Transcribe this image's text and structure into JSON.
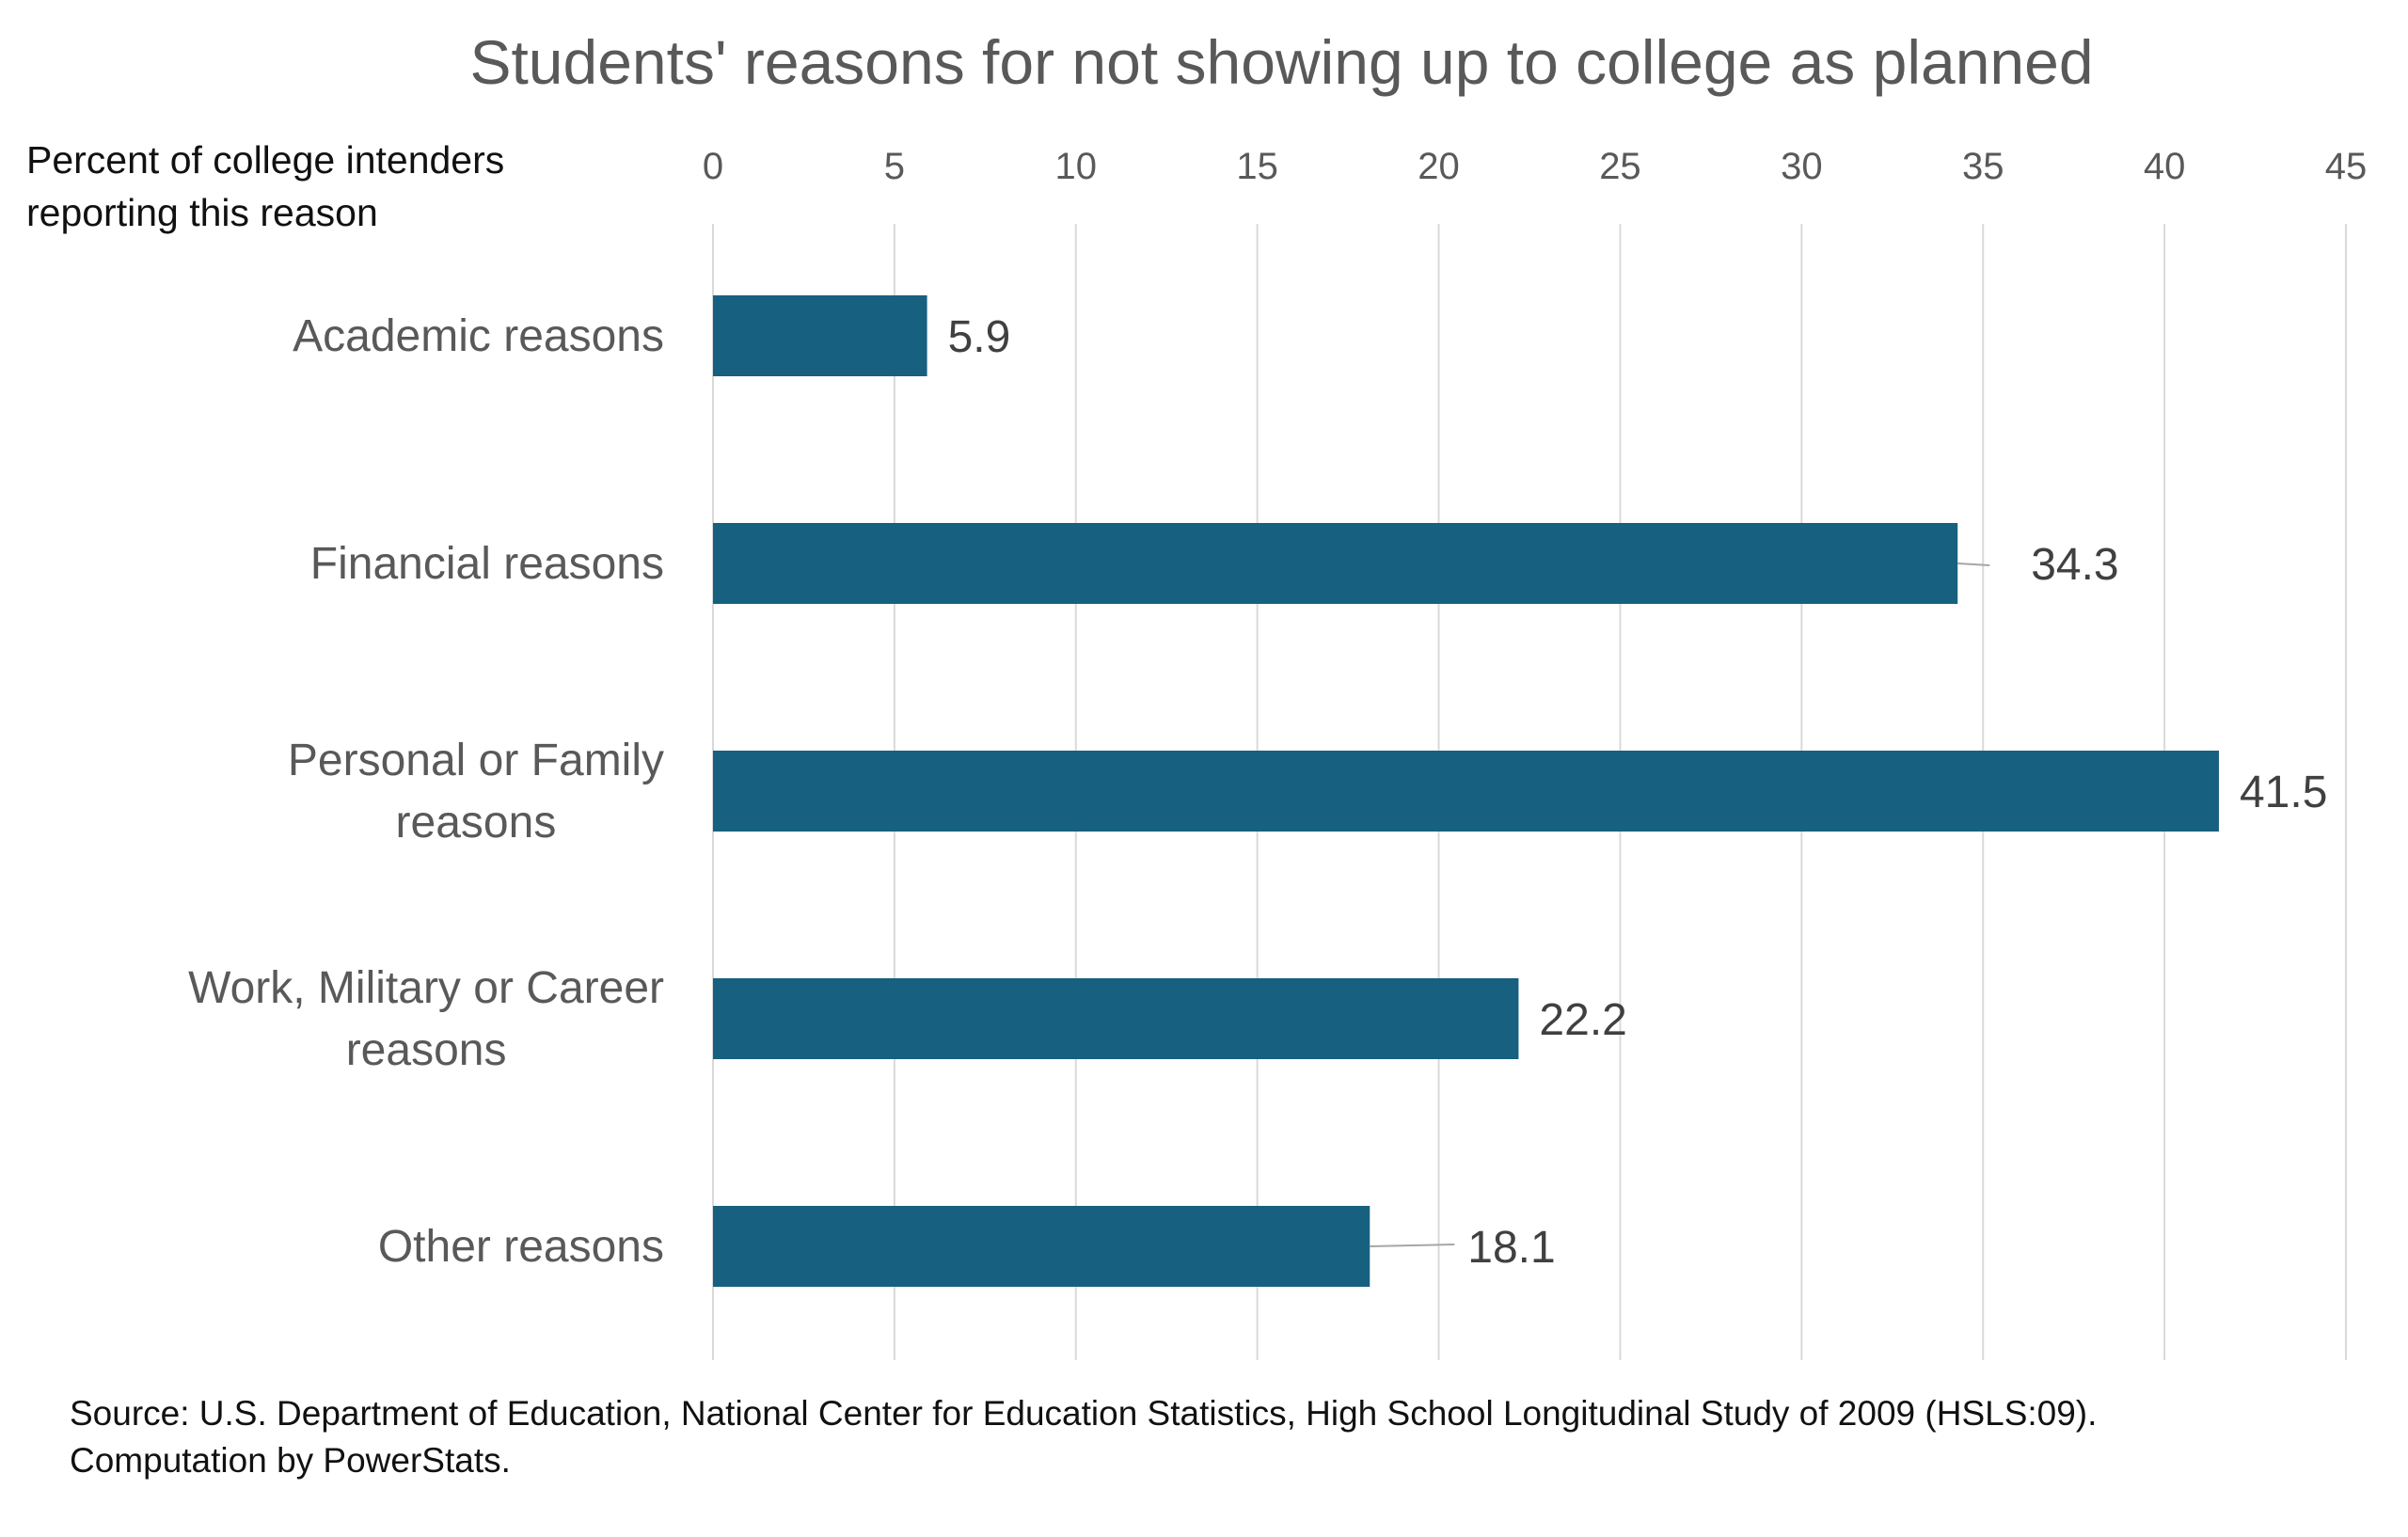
{
  "chart_data": {
    "type": "bar",
    "orientation": "horizontal",
    "title": "Students' reasons for not showing up to college as planned",
    "xlabel": "Percent of college intenders reporting this reason",
    "ylabel": "",
    "categories": [
      "Academic reasons",
      "Financial reasons",
      "Personal or Family reasons",
      "Work, Military or Career reasons",
      "Other reasons"
    ],
    "values": [
      5.9,
      34.3,
      41.5,
      22.2,
      18.1
    ],
    "data_labels": [
      "5.9",
      "34.3",
      "41.5",
      "22.2",
      "18.1"
    ],
    "xlim": [
      0,
      45
    ],
    "xticks": [
      0,
      5,
      10,
      15,
      20,
      25,
      30,
      35,
      40,
      45
    ],
    "x_axis_position": "top",
    "grid": "vertical",
    "legend": "none",
    "bar_color": "#17607F",
    "grid_color": "#D9D9D9",
    "leader_line_color": "#A6A6A6"
  },
  "source": {
    "line1": "Source: U.S. Department of Education, National Center for Education Statistics, High School Longitudinal Study of 2009 (HSLS:09).",
    "line2": "Computation by PowerStats."
  }
}
